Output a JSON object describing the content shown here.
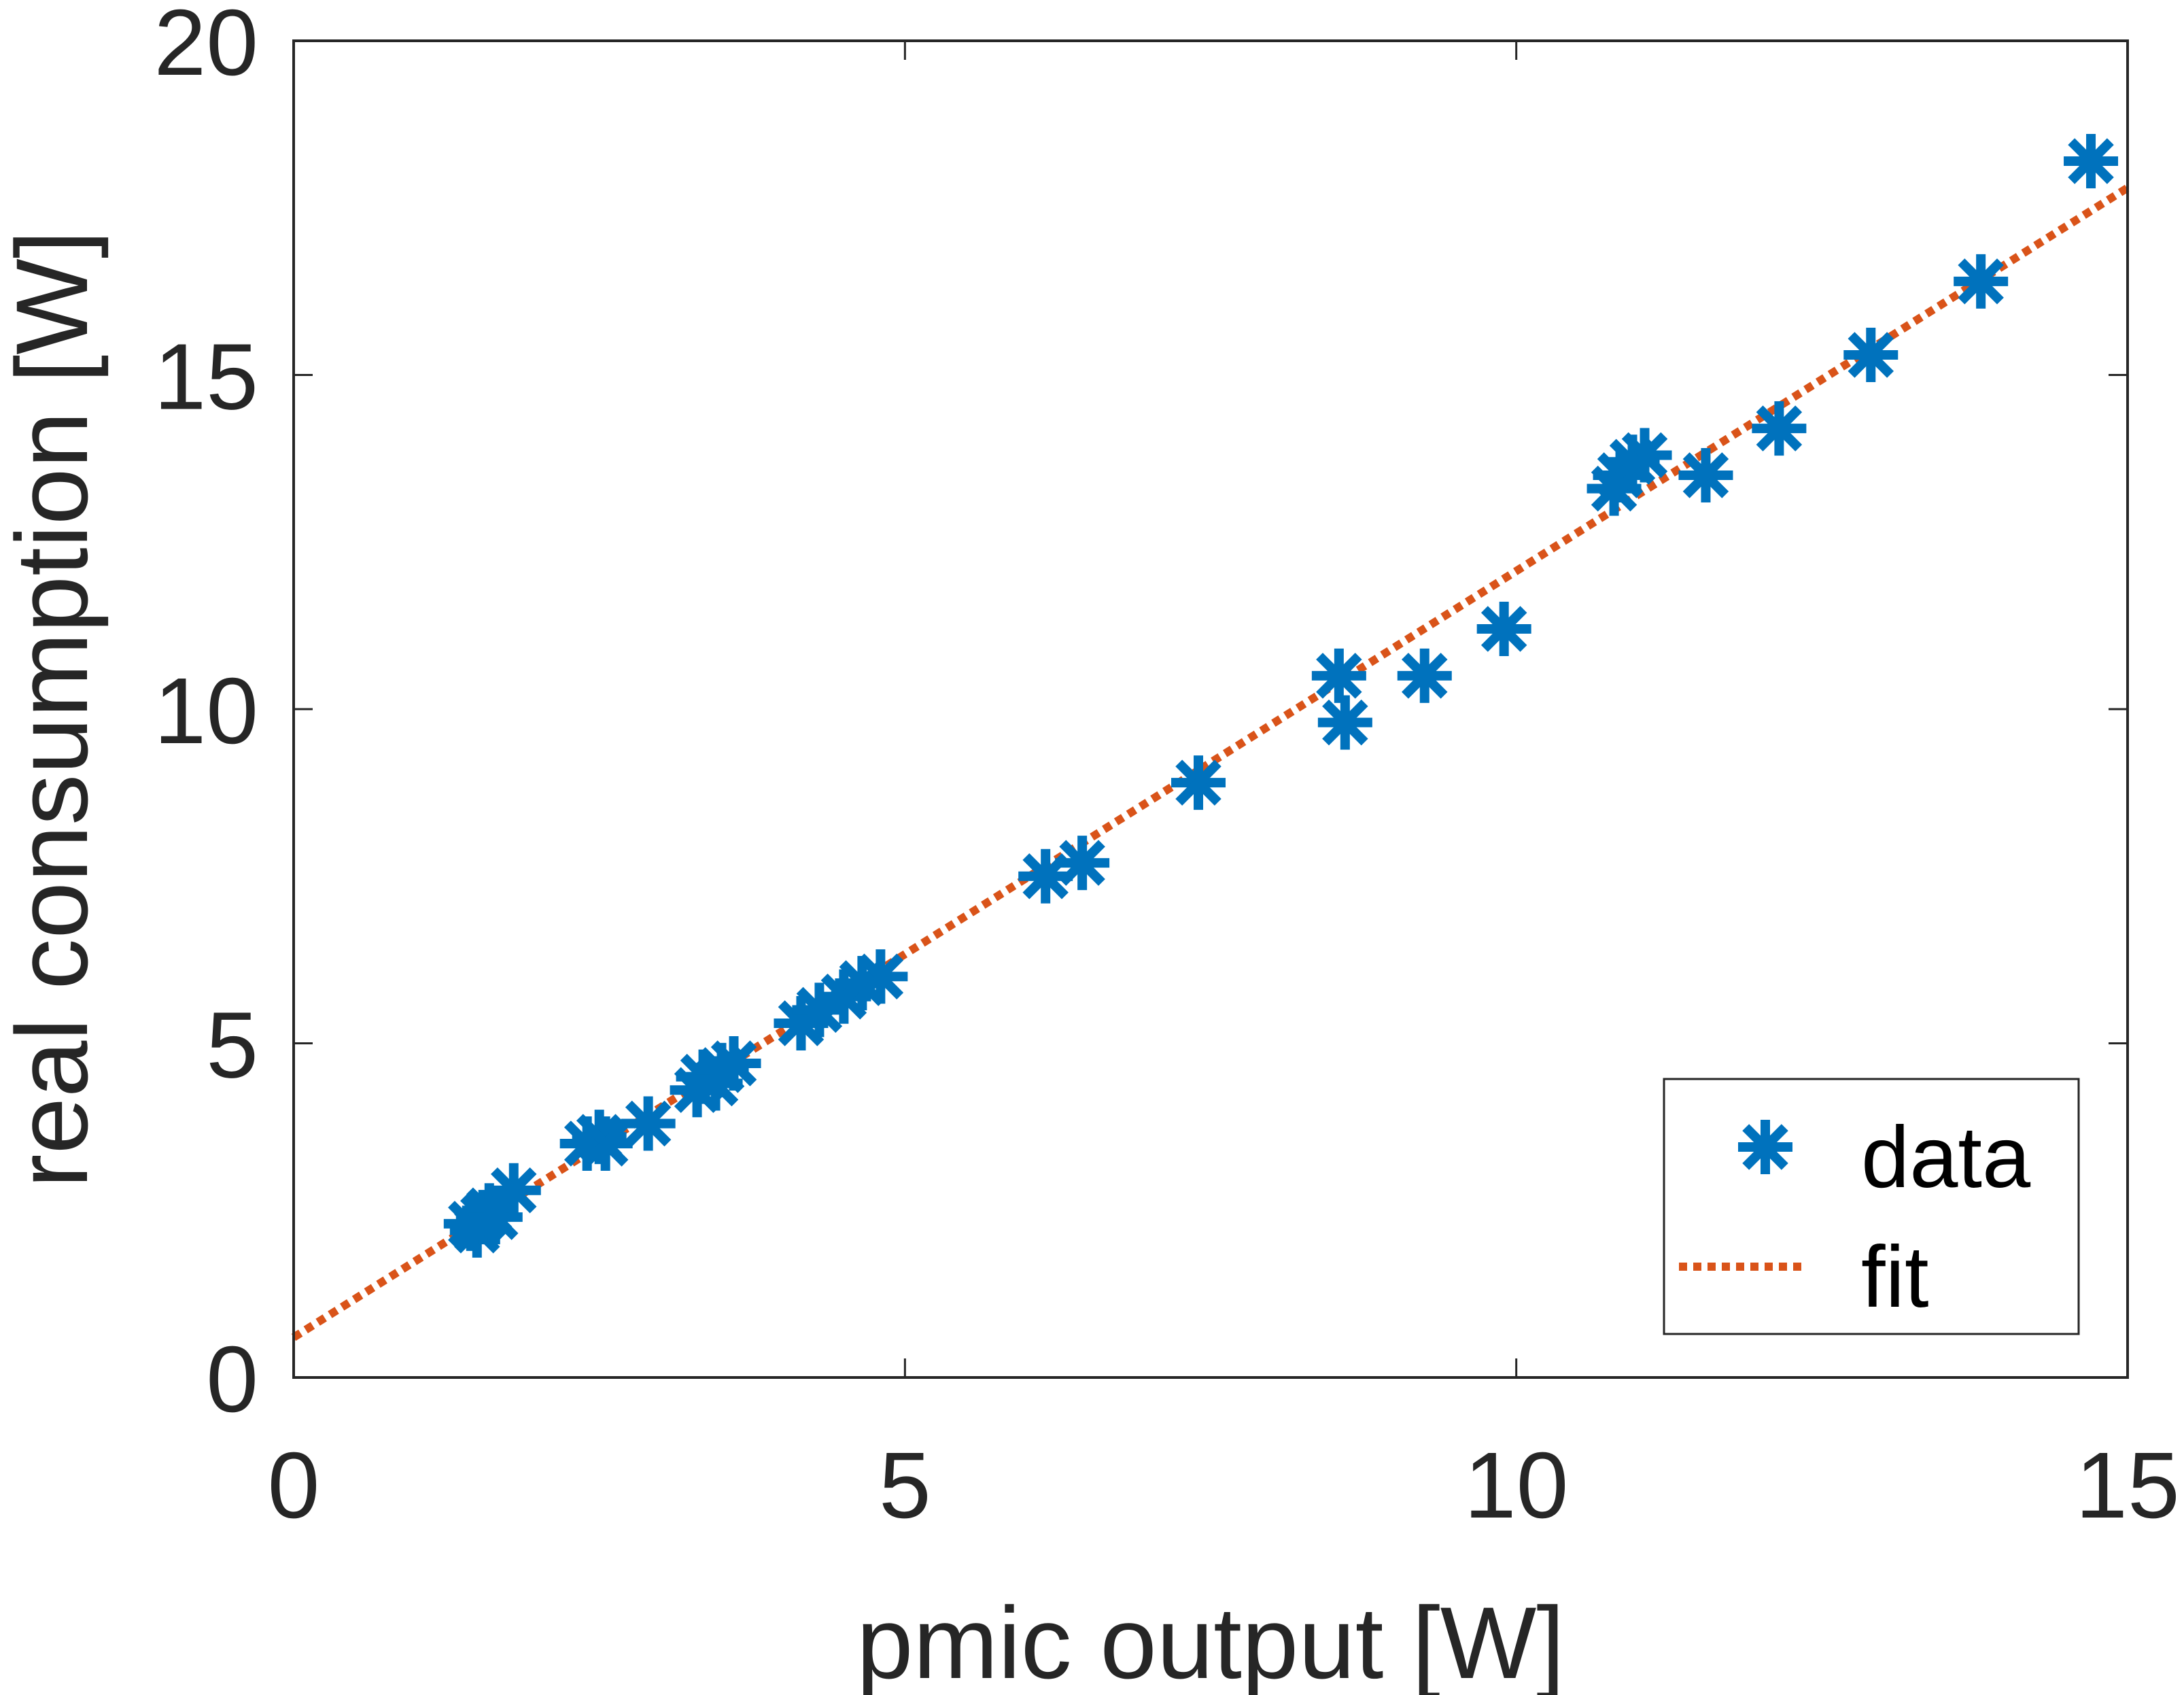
{
  "chart_data": {
    "type": "scatter",
    "xlabel": "pmic output [W]",
    "ylabel": "real consumption [W]",
    "xlim": [
      0,
      15
    ],
    "ylim": [
      0,
      20
    ],
    "xticks": [
      "0",
      "5",
      "10",
      "15"
    ],
    "yticks": [
      "0",
      "5",
      "10",
      "15",
      "20"
    ],
    "grid": false,
    "legend": {
      "position": "bottom-right",
      "entries": [
        "data",
        "fit"
      ]
    },
    "series": [
      {
        "name": "data",
        "marker": "asterisk",
        "color": "#0072BD",
        "points": [
          [
            1.45,
            2.3
          ],
          [
            1.5,
            2.2
          ],
          [
            1.55,
            2.4
          ],
          [
            1.6,
            2.5
          ],
          [
            1.65,
            2.4
          ],
          [
            1.8,
            2.8
          ],
          [
            2.4,
            3.5
          ],
          [
            2.5,
            3.6
          ],
          [
            2.55,
            3.5
          ],
          [
            2.9,
            3.8
          ],
          [
            3.3,
            4.3
          ],
          [
            3.35,
            4.5
          ],
          [
            3.45,
            4.4
          ],
          [
            3.5,
            4.6
          ],
          [
            3.6,
            4.7
          ],
          [
            4.15,
            5.3
          ],
          [
            4.3,
            5.5
          ],
          [
            4.5,
            5.7
          ],
          [
            4.65,
            5.9
          ],
          [
            4.8,
            6.0
          ],
          [
            6.15,
            7.5
          ],
          [
            6.45,
            7.7
          ],
          [
            7.4,
            8.9
          ],
          [
            8.55,
            10.5
          ],
          [
            8.6,
            9.8
          ],
          [
            9.25,
            10.5
          ],
          [
            9.9,
            11.2
          ],
          [
            10.8,
            13.3
          ],
          [
            10.85,
            13.5
          ],
          [
            10.95,
            13.7
          ],
          [
            11.05,
            13.8
          ],
          [
            11.55,
            13.5
          ],
          [
            12.15,
            14.2
          ],
          [
            12.9,
            15.3
          ],
          [
            13.8,
            16.4
          ],
          [
            14.7,
            18.2
          ]
        ]
      },
      {
        "name": "fit",
        "line": "dotted",
        "color": "#D95319",
        "x": [
          0,
          15
        ],
        "y": [
          0.6,
          17.8
        ]
      }
    ]
  }
}
